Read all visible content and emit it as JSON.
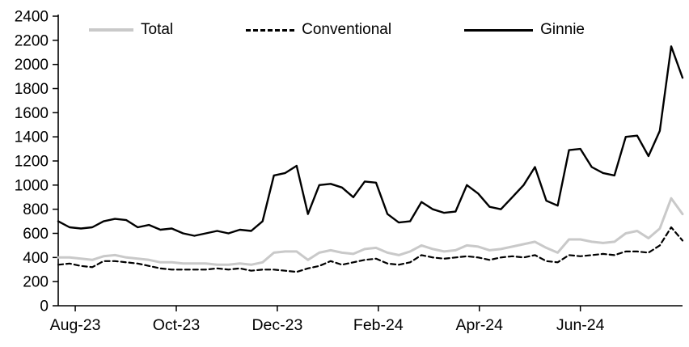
{
  "chart_data": {
    "type": "line",
    "title": "",
    "xlabel": "",
    "ylabel": "",
    "ylim": [
      0,
      2400
    ],
    "y_step": 200,
    "grid": false,
    "legend_position": "top",
    "x_tick_labels": [
      "Aug-23",
      "Oct-23",
      "Dec-23",
      "Feb-24",
      "Apr-24",
      "Jun-24"
    ],
    "x_tick_indices": [
      1.5,
      10.4,
      19.3,
      28.2,
      37.1,
      46.0
    ],
    "series": [
      {
        "name": "Total",
        "color": "#c9c9c9",
        "dash": "",
        "width": 3,
        "values": [
          400,
          400,
          390,
          380,
          410,
          420,
          400,
          390,
          380,
          360,
          360,
          350,
          350,
          350,
          340,
          340,
          350,
          340,
          360,
          440,
          450,
          450,
          380,
          440,
          460,
          440,
          430,
          470,
          480,
          440,
          420,
          450,
          500,
          470,
          450,
          460,
          500,
          490,
          460,
          470,
          490,
          510,
          530,
          480,
          440,
          550,
          550,
          530,
          520,
          530,
          600,
          620,
          560,
          640,
          890,
          760
        ]
      },
      {
        "name": "Conventional",
        "color": "#000000",
        "dash": "6 4",
        "width": 2.2,
        "values": [
          340,
          350,
          330,
          320,
          370,
          370,
          360,
          350,
          330,
          310,
          300,
          300,
          300,
          300,
          310,
          300,
          310,
          290,
          300,
          300,
          290,
          280,
          310,
          330,
          370,
          340,
          360,
          380,
          390,
          350,
          340,
          360,
          420,
          400,
          390,
          400,
          410,
          400,
          380,
          400,
          410,
          400,
          420,
          370,
          360,
          420,
          410,
          420,
          430,
          420,
          450,
          450,
          440,
          500,
          650,
          540
        ]
      },
      {
        "name": "Ginnie",
        "color": "#000000",
        "dash": "",
        "width": 2.4,
        "values": [
          700,
          650,
          640,
          650,
          700,
          720,
          710,
          650,
          670,
          630,
          640,
          600,
          580,
          600,
          620,
          600,
          630,
          620,
          700,
          1080,
          1100,
          1160,
          760,
          1000,
          1010,
          980,
          900,
          1030,
          1020,
          760,
          690,
          700,
          860,
          800,
          770,
          780,
          1000,
          930,
          820,
          800,
          900,
          1000,
          1150,
          870,
          830,
          1290,
          1300,
          1150,
          1100,
          1080,
          1400,
          1410,
          1240,
          1450,
          2150,
          1890
        ]
      }
    ]
  }
}
